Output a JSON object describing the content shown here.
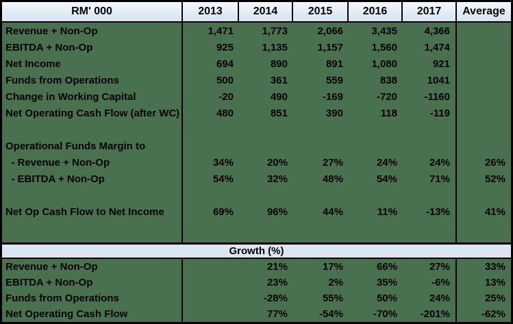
{
  "table": {
    "unit_header": "RM' 000",
    "columns": [
      "2013",
      "2014",
      "2015",
      "2016",
      "2017"
    ],
    "average_header": "Average",
    "rows": [
      {
        "label": "Revenue + Non-Op",
        "values": [
          "1,471",
          "1,773",
          "2,066",
          "3,435",
          "4,366"
        ],
        "avg": ""
      },
      {
        "label": "EBITDA + Non-Op",
        "values": [
          "925",
          "1,135",
          "1,157",
          "1,560",
          "1,474"
        ],
        "avg": ""
      },
      {
        "label": "Net Income",
        "values": [
          "694",
          "890",
          "891",
          "1,080",
          "921"
        ],
        "avg": ""
      },
      {
        "label": "Funds from Operations",
        "values": [
          "500",
          "361",
          "559",
          "838",
          "1041"
        ],
        "avg": ""
      },
      {
        "label": "Change in Working Capital",
        "values": [
          "-20",
          "490",
          "-169",
          "-720",
          "-1160"
        ],
        "avg": ""
      },
      {
        "label": "Net Operating Cash Flow (after WC)",
        "values": [
          "480",
          "851",
          "390",
          "118",
          "-119"
        ],
        "avg": ""
      },
      {
        "label": "",
        "values": [
          "",
          "",
          "",
          "",
          ""
        ],
        "avg": ""
      },
      {
        "label": "Operational Funds Margin to",
        "values": [
          "",
          "",
          "",
          "",
          ""
        ],
        "avg": ""
      },
      {
        "label": "  - Revenue + Non-Op",
        "values": [
          "34%",
          "20%",
          "27%",
          "24%",
          "24%"
        ],
        "avg": "26%"
      },
      {
        "label": "  - EBITDA + Non-Op",
        "values": [
          "54%",
          "32%",
          "48%",
          "54%",
          "71%"
        ],
        "avg": "52%"
      },
      {
        "label": "",
        "values": [
          "",
          "",
          "",
          "",
          ""
        ],
        "avg": ""
      },
      {
        "label": "Net Op Cash Flow to Net Income",
        "values": [
          "69%",
          "96%",
          "44%",
          "11%",
          "-13%"
        ],
        "avg": "41%"
      },
      {
        "label": "",
        "values": [
          "",
          "",
          "",
          "",
          ""
        ],
        "avg": ""
      }
    ]
  },
  "growth": {
    "header": "Growth (%)",
    "rows": [
      {
        "label": "Revenue + Non-Op",
        "values": [
          "",
          "21%",
          "17%",
          "66%",
          "27%"
        ],
        "avg": "33%"
      },
      {
        "label": "EBITDA + Non-Op",
        "values": [
          "",
          "23%",
          "2%",
          "35%",
          "-6%"
        ],
        "avg": "13%"
      },
      {
        "label": "Funds from Operations",
        "values": [
          "",
          "-28%",
          "55%",
          "50%",
          "24%"
        ],
        "avg": "25%"
      },
      {
        "label": "Net Operating Cash Flow",
        "values": [
          "",
          "77%",
          "-54%",
          "-70%",
          "-201%"
        ],
        "avg": "-62%"
      }
    ]
  },
  "colors": {
    "body_green": "#497150",
    "header_blue": "#dbe6f2",
    "border": "#000000",
    "text": "#000000"
  }
}
